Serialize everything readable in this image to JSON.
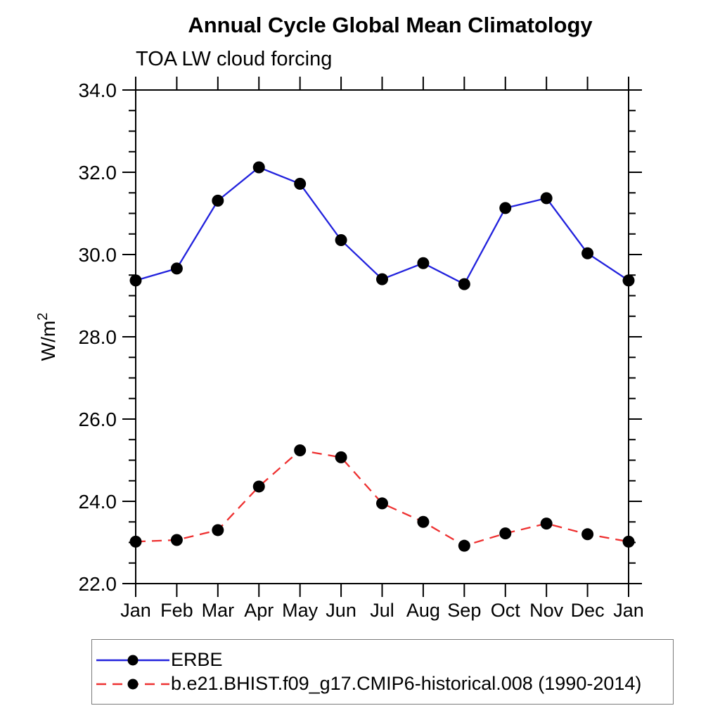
{
  "chart_data": {
    "type": "line",
    "title": "Annual Cycle Global Mean Climatology",
    "subtitle": "TOA LW cloud forcing",
    "ylabel": "W/m²",
    "ylabel_base": "W/m",
    "ylabel_exponent": "2",
    "categories": [
      "Jan",
      "Feb",
      "Mar",
      "Apr",
      "May",
      "Jun",
      "Jul",
      "Aug",
      "Sep",
      "Oct",
      "Nov",
      "Dec",
      "Jan"
    ],
    "ylim": [
      22.0,
      34.0
    ],
    "ytick_major_step": 2.0,
    "ytick_minor_step": 0.5,
    "ytick_labels": [
      "22.0",
      "24.0",
      "26.0",
      "28.0",
      "30.0",
      "32.0",
      "34.0"
    ],
    "grid": false,
    "legend_position": "bottom-left-box",
    "axis_color": "#000000",
    "series": [
      {
        "name": "ERBE",
        "color": "#2222dd",
        "line_style": "solid",
        "marker": "filled-circle",
        "marker_color": "#000000",
        "values": [
          29.37,
          29.66,
          31.31,
          32.12,
          31.72,
          30.35,
          29.4,
          29.79,
          29.28,
          31.13,
          31.37,
          30.03,
          29.37
        ]
      },
      {
        "name": "b.e21.BHIST.f09_g17.CMIP6-historical.008 (1990-2014)",
        "color": "#ee3030",
        "line_style": "dashed",
        "marker": "filled-circle",
        "marker_color": "#000000",
        "values": [
          23.02,
          23.06,
          23.3,
          24.36,
          25.24,
          25.07,
          23.95,
          23.5,
          22.92,
          23.22,
          23.46,
          23.2,
          23.02
        ]
      }
    ]
  }
}
